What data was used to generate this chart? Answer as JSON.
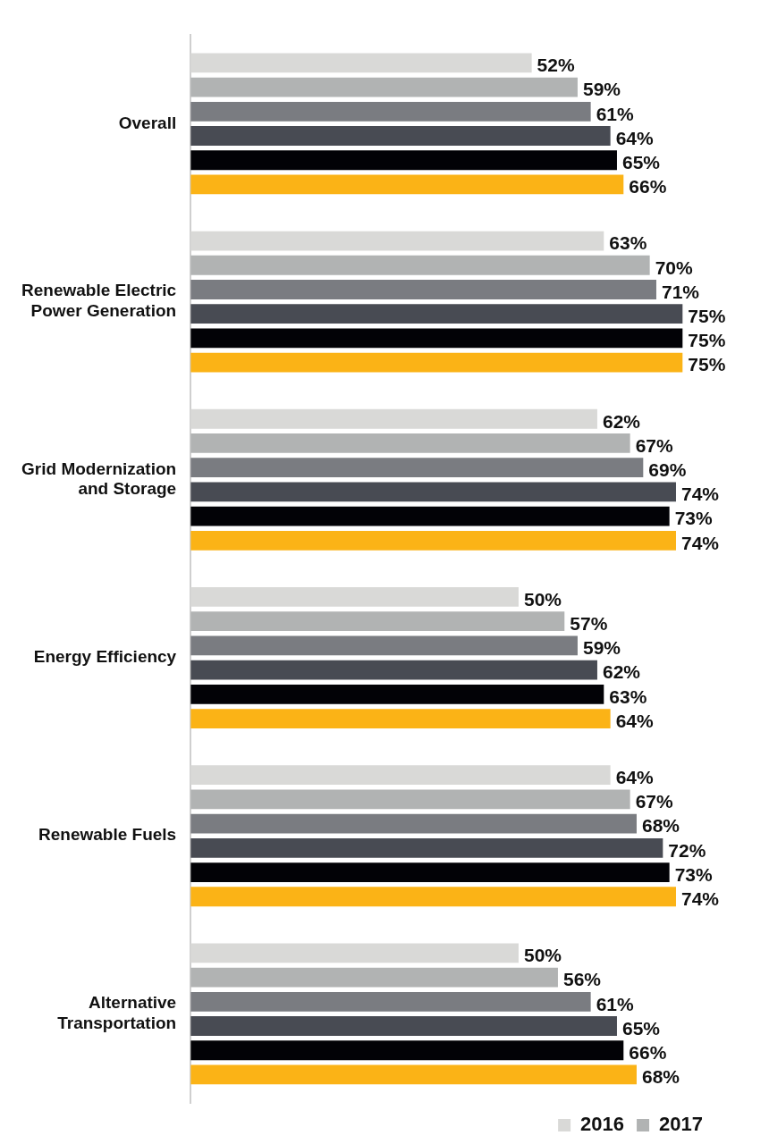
{
  "chart_data": {
    "type": "bar",
    "orientation": "horizontal",
    "categories": [
      "Overall",
      "Renewable Electric Power Generation",
      "Grid Modernization and Storage",
      "Energy Efficiency",
      "Renewable Fuels",
      "Alternative Transportation"
    ],
    "tick_labels": "y",
    "grid": false,
    "legend": "bottom right",
    "series": [
      {
        "name": "2016",
        "color": "#d9d9d7",
        "values": [
          52,
          63,
          62,
          50,
          64,
          50
        ],
        "value_labels": [
          "52%",
          "63%",
          "62%",
          "50%",
          "64%",
          "50%"
        ]
      },
      {
        "name": "2017",
        "color": "#b1b3b3",
        "values": [
          59,
          70,
          67,
          57,
          67,
          56
        ],
        "value_labels": [
          "59%",
          "70%",
          "67%",
          "57%",
          "67%",
          "56%"
        ]
      },
      {
        "color": "#7a7c81",
        "values": [
          61,
          71,
          69,
          59,
          68,
          61
        ],
        "value_labels": [
          "61%",
          "71%",
          "69%",
          "59%",
          "68%",
          "61%"
        ]
      },
      {
        "color": "#484b53",
        "values": [
          64,
          75,
          74,
          62,
          72,
          65
        ],
        "value_labels": [
          "64%",
          "75%",
          "74%",
          "62%",
          "72%",
          "65%"
        ]
      },
      {
        "color": "#020206",
        "values": [
          65,
          75,
          73,
          63,
          73,
          66
        ],
        "value_labels": [
          "65%",
          "75%",
          "73%",
          "63%",
          "73%",
          "66%"
        ]
      },
      {
        "color": "#fbb316",
        "values": [
          66,
          75,
          74,
          64,
          74,
          68
        ],
        "value_labels": [
          "66%",
          "75%",
          "74%",
          "64%",
          "74%",
          "68%"
        ]
      }
    ]
  }
}
